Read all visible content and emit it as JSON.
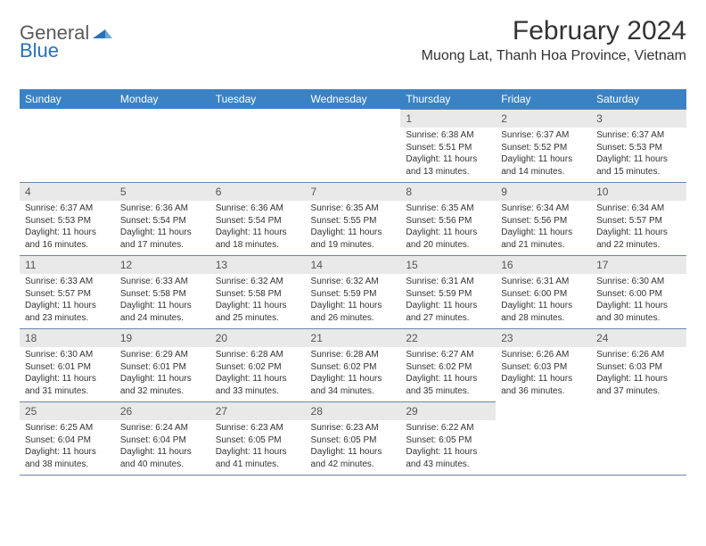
{
  "brand": {
    "part1": "General",
    "part2": "Blue"
  },
  "title": "February 2024",
  "location": "Muong Lat, Thanh Hoa Province, Vietnam",
  "colors": {
    "header_bg": "#3b82c4",
    "header_text": "#ffffff",
    "daynum_bg": "#e9e9e9",
    "rule": "#6a87a8",
    "logo_gray": "#5a5a5a",
    "logo_blue": "#2a72b5"
  },
  "dow": [
    "Sunday",
    "Monday",
    "Tuesday",
    "Wednesday",
    "Thursday",
    "Friday",
    "Saturday"
  ],
  "weeks": [
    [
      null,
      null,
      null,
      null,
      {
        "n": "1",
        "sr": "Sunrise: 6:38 AM",
        "ss": "Sunset: 5:51 PM",
        "d1": "Daylight: 11 hours",
        "d2": "and 13 minutes."
      },
      {
        "n": "2",
        "sr": "Sunrise: 6:37 AM",
        "ss": "Sunset: 5:52 PM",
        "d1": "Daylight: 11 hours",
        "d2": "and 14 minutes."
      },
      {
        "n": "3",
        "sr": "Sunrise: 6:37 AM",
        "ss": "Sunset: 5:53 PM",
        "d1": "Daylight: 11 hours",
        "d2": "and 15 minutes."
      }
    ],
    [
      {
        "n": "4",
        "sr": "Sunrise: 6:37 AM",
        "ss": "Sunset: 5:53 PM",
        "d1": "Daylight: 11 hours",
        "d2": "and 16 minutes."
      },
      {
        "n": "5",
        "sr": "Sunrise: 6:36 AM",
        "ss": "Sunset: 5:54 PM",
        "d1": "Daylight: 11 hours",
        "d2": "and 17 minutes."
      },
      {
        "n": "6",
        "sr": "Sunrise: 6:36 AM",
        "ss": "Sunset: 5:54 PM",
        "d1": "Daylight: 11 hours",
        "d2": "and 18 minutes."
      },
      {
        "n": "7",
        "sr": "Sunrise: 6:35 AM",
        "ss": "Sunset: 5:55 PM",
        "d1": "Daylight: 11 hours",
        "d2": "and 19 minutes."
      },
      {
        "n": "8",
        "sr": "Sunrise: 6:35 AM",
        "ss": "Sunset: 5:56 PM",
        "d1": "Daylight: 11 hours",
        "d2": "and 20 minutes."
      },
      {
        "n": "9",
        "sr": "Sunrise: 6:34 AM",
        "ss": "Sunset: 5:56 PM",
        "d1": "Daylight: 11 hours",
        "d2": "and 21 minutes."
      },
      {
        "n": "10",
        "sr": "Sunrise: 6:34 AM",
        "ss": "Sunset: 5:57 PM",
        "d1": "Daylight: 11 hours",
        "d2": "and 22 minutes."
      }
    ],
    [
      {
        "n": "11",
        "sr": "Sunrise: 6:33 AM",
        "ss": "Sunset: 5:57 PM",
        "d1": "Daylight: 11 hours",
        "d2": "and 23 minutes."
      },
      {
        "n": "12",
        "sr": "Sunrise: 6:33 AM",
        "ss": "Sunset: 5:58 PM",
        "d1": "Daylight: 11 hours",
        "d2": "and 24 minutes."
      },
      {
        "n": "13",
        "sr": "Sunrise: 6:32 AM",
        "ss": "Sunset: 5:58 PM",
        "d1": "Daylight: 11 hours",
        "d2": "and 25 minutes."
      },
      {
        "n": "14",
        "sr": "Sunrise: 6:32 AM",
        "ss": "Sunset: 5:59 PM",
        "d1": "Daylight: 11 hours",
        "d2": "and 26 minutes."
      },
      {
        "n": "15",
        "sr": "Sunrise: 6:31 AM",
        "ss": "Sunset: 5:59 PM",
        "d1": "Daylight: 11 hours",
        "d2": "and 27 minutes."
      },
      {
        "n": "16",
        "sr": "Sunrise: 6:31 AM",
        "ss": "Sunset: 6:00 PM",
        "d1": "Daylight: 11 hours",
        "d2": "and 28 minutes."
      },
      {
        "n": "17",
        "sr": "Sunrise: 6:30 AM",
        "ss": "Sunset: 6:00 PM",
        "d1": "Daylight: 11 hours",
        "d2": "and 30 minutes."
      }
    ],
    [
      {
        "n": "18",
        "sr": "Sunrise: 6:30 AM",
        "ss": "Sunset: 6:01 PM",
        "d1": "Daylight: 11 hours",
        "d2": "and 31 minutes."
      },
      {
        "n": "19",
        "sr": "Sunrise: 6:29 AM",
        "ss": "Sunset: 6:01 PM",
        "d1": "Daylight: 11 hours",
        "d2": "and 32 minutes."
      },
      {
        "n": "20",
        "sr": "Sunrise: 6:28 AM",
        "ss": "Sunset: 6:02 PM",
        "d1": "Daylight: 11 hours",
        "d2": "and 33 minutes."
      },
      {
        "n": "21",
        "sr": "Sunrise: 6:28 AM",
        "ss": "Sunset: 6:02 PM",
        "d1": "Daylight: 11 hours",
        "d2": "and 34 minutes."
      },
      {
        "n": "22",
        "sr": "Sunrise: 6:27 AM",
        "ss": "Sunset: 6:02 PM",
        "d1": "Daylight: 11 hours",
        "d2": "and 35 minutes."
      },
      {
        "n": "23",
        "sr": "Sunrise: 6:26 AM",
        "ss": "Sunset: 6:03 PM",
        "d1": "Daylight: 11 hours",
        "d2": "and 36 minutes."
      },
      {
        "n": "24",
        "sr": "Sunrise: 6:26 AM",
        "ss": "Sunset: 6:03 PM",
        "d1": "Daylight: 11 hours",
        "d2": "and 37 minutes."
      }
    ],
    [
      {
        "n": "25",
        "sr": "Sunrise: 6:25 AM",
        "ss": "Sunset: 6:04 PM",
        "d1": "Daylight: 11 hours",
        "d2": "and 38 minutes."
      },
      {
        "n": "26",
        "sr": "Sunrise: 6:24 AM",
        "ss": "Sunset: 6:04 PM",
        "d1": "Daylight: 11 hours",
        "d2": "and 40 minutes."
      },
      {
        "n": "27",
        "sr": "Sunrise: 6:23 AM",
        "ss": "Sunset: 6:05 PM",
        "d1": "Daylight: 11 hours",
        "d2": "and 41 minutes."
      },
      {
        "n": "28",
        "sr": "Sunrise: 6:23 AM",
        "ss": "Sunset: 6:05 PM",
        "d1": "Daylight: 11 hours",
        "d2": "and 42 minutes."
      },
      {
        "n": "29",
        "sr": "Sunrise: 6:22 AM",
        "ss": "Sunset: 6:05 PM",
        "d1": "Daylight: 11 hours",
        "d2": "and 43 minutes."
      },
      null,
      null
    ]
  ]
}
